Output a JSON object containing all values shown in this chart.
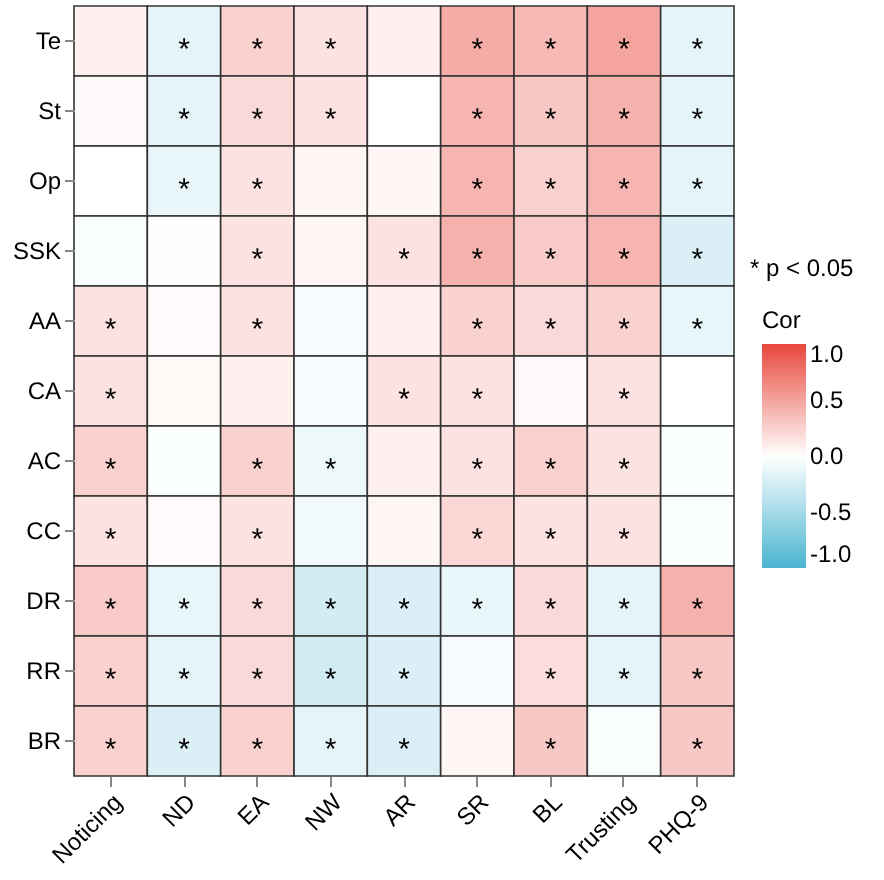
{
  "chart_data": {
    "type": "heatmap",
    "clabel": "Cor",
    "annotations": [
      "* p < 0.05"
    ],
    "categories": [
      "Noticing",
      "ND",
      "EA",
      "NW",
      "AR",
      "SR",
      "BL",
      "Trusting",
      "PHQ-9"
    ],
    "y_categories": [
      "Te",
      "St",
      "Op",
      "SSK",
      "AA",
      "CA",
      "AC",
      "CC",
      "DR",
      "RR",
      "BR"
    ],
    "cells": [
      [
        0.08,
        -0.15,
        0.25,
        0.15,
        0.08,
        0.45,
        0.38,
        0.5,
        -0.15
      ],
      [
        0.03,
        -0.15,
        0.2,
        0.15,
        0.0,
        0.4,
        0.3,
        0.42,
        -0.15
      ],
      [
        0.0,
        -0.12,
        0.15,
        0.05,
        0.05,
        0.4,
        0.25,
        0.4,
        -0.15
      ],
      [
        -0.03,
        0.01,
        0.15,
        0.05,
        0.15,
        0.42,
        0.28,
        0.4,
        -0.2
      ],
      [
        0.15,
        0.02,
        0.15,
        -0.05,
        0.08,
        0.25,
        0.2,
        0.25,
        -0.12
      ],
      [
        0.15,
        0.04,
        0.08,
        -0.05,
        0.15,
        0.15,
        0.03,
        0.15,
        0.0
      ],
      [
        0.25,
        -0.02,
        0.25,
        -0.1,
        0.08,
        0.15,
        0.25,
        0.15,
        -0.02
      ],
      [
        0.15,
        0.02,
        0.15,
        -0.08,
        0.05,
        0.22,
        0.15,
        0.15,
        -0.02
      ],
      [
        0.28,
        -0.12,
        0.2,
        -0.25,
        -0.2,
        -0.12,
        0.2,
        -0.15,
        0.42
      ],
      [
        0.25,
        -0.15,
        0.2,
        -0.25,
        -0.2,
        -0.05,
        0.18,
        -0.15,
        0.3
      ],
      [
        0.25,
        -0.2,
        0.25,
        -0.15,
        -0.2,
        0.05,
        0.3,
        -0.03,
        0.3
      ]
    ],
    "cell_labels": [
      [
        null,
        "*",
        "*",
        "*",
        null,
        "*",
        "*",
        "*",
        "*"
      ],
      [
        null,
        "*",
        "*",
        "*",
        null,
        "*",
        "*",
        "*",
        "*"
      ],
      [
        null,
        "*",
        "*",
        null,
        null,
        "*",
        "*",
        "*",
        "*"
      ],
      [
        null,
        null,
        "*",
        null,
        "*",
        "*",
        "*",
        "*",
        "*"
      ],
      [
        "*",
        null,
        "*",
        null,
        null,
        "*",
        "*",
        "*",
        "*"
      ],
      [
        "*",
        null,
        null,
        null,
        "*",
        "*",
        null,
        "*",
        null
      ],
      [
        "*",
        null,
        "*",
        "*",
        null,
        "*",
        "*",
        "*",
        null
      ],
      [
        "*",
        null,
        "*",
        null,
        null,
        "*",
        "*",
        "*",
        null
      ],
      [
        "*",
        "*",
        "*",
        "*",
        "*",
        "*",
        "*",
        "*",
        "*"
      ],
      [
        "*",
        "*",
        "*",
        "*",
        "*",
        null,
        "*",
        "*",
        "*"
      ],
      [
        "*",
        "*",
        "*",
        "*",
        "*",
        null,
        "*",
        null,
        "*"
      ]
    ],
    "clim": [
      -1,
      1
    ],
    "cticks": [
      {
        "value": -1,
        "label": "-1.0"
      },
      {
        "value": -0.5,
        "label": "-0.5"
      },
      {
        "value": 0,
        "label": "0.0"
      },
      {
        "value": 0.5,
        "label": "0.5"
      },
      {
        "value": 1,
        "label": "1.0"
      }
    ]
  }
}
